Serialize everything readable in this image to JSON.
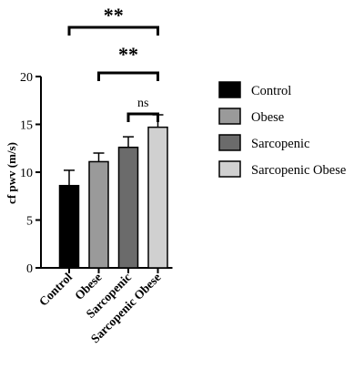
{
  "chart_data": {
    "type": "bar",
    "categories": [
      "Control",
      "Obese",
      "Sarcopenic",
      "Sarcopenic Obese"
    ],
    "values": [
      8.6,
      11.1,
      12.6,
      14.7
    ],
    "errors": [
      1.6,
      0.9,
      1.1,
      1.3
    ],
    "colors": [
      "#000000",
      "#9a9a9a",
      "#6b6b6b",
      "#d0d0d0"
    ],
    "ylabel": "cf pwv (m/s)",
    "xlabel": "",
    "title": "",
    "ylim": [
      0,
      20
    ],
    "yticks": [
      0,
      5,
      10,
      15,
      20
    ],
    "grid": false,
    "legend_position": "right",
    "significance": [
      {
        "from": "Control",
        "to": "Sarcopenic Obese",
        "label": "**"
      },
      {
        "from": "Obese",
        "to": "Sarcopenic Obese",
        "label": "**"
      },
      {
        "from": "Sarcopenic",
        "to": "Sarcopenic Obese",
        "label": "ns"
      }
    ]
  }
}
